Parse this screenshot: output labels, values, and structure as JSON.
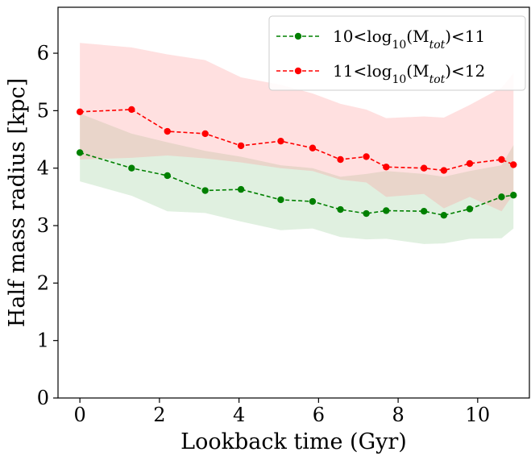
{
  "chart_data": {
    "type": "line",
    "xlabel": "Lookback time (Gyr)",
    "ylabel": "Half mass radius [kpc]",
    "xlim": [
      -0.55,
      11.3
    ],
    "ylim": [
      0,
      6.8
    ],
    "xticks": [
      0,
      2,
      4,
      6,
      8,
      10
    ],
    "yticks": [
      0,
      1,
      2,
      3,
      4,
      5,
      6
    ],
    "grid": false,
    "legend_position": "top-right",
    "series": [
      {
        "name": "10<log10(Mtot)<11",
        "legend": {
          "pre": "10<log",
          "sub1": "10",
          "mid": "(M",
          "sub2": "tot",
          "post": ")<11"
        },
        "color": "#008000",
        "band_color": "#008000",
        "x": [
          0,
          1.3,
          2.2,
          3.15,
          4.05,
          5.05,
          5.85,
          6.55,
          7.2,
          7.7,
          8.65,
          9.15,
          9.8,
          10.6,
          10.9
        ],
        "y": [
          4.27,
          4.0,
          3.87,
          3.61,
          3.63,
          3.45,
          3.42,
          3.28,
          3.21,
          3.26,
          3.25,
          3.18,
          3.29,
          3.5,
          3.53
        ],
        "band_upper": [
          4.95,
          4.6,
          4.45,
          4.3,
          4.2,
          4.05,
          4.0,
          3.85,
          3.9,
          3.95,
          3.9,
          3.85,
          3.95,
          4.05,
          4.4
        ],
        "band_lower": [
          3.77,
          3.52,
          3.25,
          3.22,
          3.07,
          2.92,
          2.95,
          2.8,
          2.76,
          2.77,
          2.68,
          2.69,
          2.77,
          2.78,
          2.95
        ]
      },
      {
        "name": "11<log10(Mtot)<12",
        "legend": {
          "pre": "11<log",
          "sub1": "10",
          "mid": "(M",
          "sub2": "tot",
          "post": ")<12"
        },
        "color": "#ff0000",
        "band_color": "#ff9999",
        "x": [
          0,
          1.3,
          2.2,
          3.15,
          4.05,
          5.05,
          5.85,
          6.55,
          7.2,
          7.7,
          8.65,
          9.15,
          9.8,
          10.6,
          10.9
        ],
        "y": [
          4.98,
          5.02,
          4.64,
          4.6,
          4.39,
          4.47,
          4.35,
          4.15,
          4.2,
          4.02,
          4.0,
          3.96,
          4.08,
          4.15,
          4.06
        ],
        "band_upper": [
          6.18,
          6.1,
          5.98,
          5.88,
          5.58,
          5.45,
          5.3,
          5.12,
          5.02,
          4.87,
          4.9,
          4.88,
          5.1,
          5.4,
          5.65
        ],
        "band_lower": [
          4.15,
          4.18,
          4.22,
          4.17,
          4.1,
          4.0,
          3.95,
          3.8,
          3.75,
          3.5,
          3.55,
          3.3,
          3.5,
          3.25,
          3.55
        ]
      }
    ]
  }
}
